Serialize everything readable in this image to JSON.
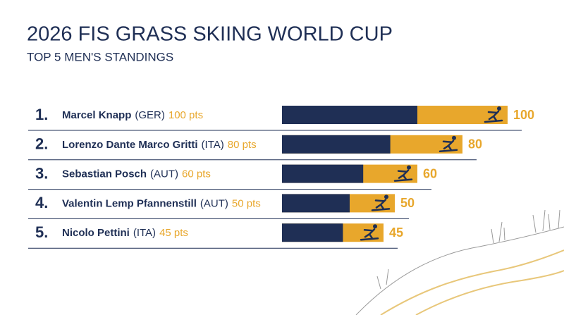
{
  "chart_data": {
    "type": "bar",
    "title": "2026 FIS GRASS SKIING WORLD CUP",
    "subtitle": "TOP 5 MEN'S STANDINGS",
    "ranks": [
      "1.",
      "2.",
      "3.",
      "4.",
      "5."
    ],
    "categories": [
      "Marcel Knapp",
      "Lorenzo Dante Marco Gritti",
      "Sebastian Posch",
      "Valentin Lemp Pfannenstill",
      "Nicolo Pettini"
    ],
    "countries": [
      "(GER)",
      "(ITA)",
      "(AUT)",
      "(AUT)",
      "(ITA)"
    ],
    "values": [
      100,
      80,
      60,
      50,
      45
    ],
    "value_labels": [
      "100 pts",
      "80 pts",
      "60 pts",
      "50 pts",
      "45 pts"
    ],
    "xlim": [
      0,
      100
    ],
    "color": "#e8a72c",
    "accent_color": "#1f2f55"
  }
}
